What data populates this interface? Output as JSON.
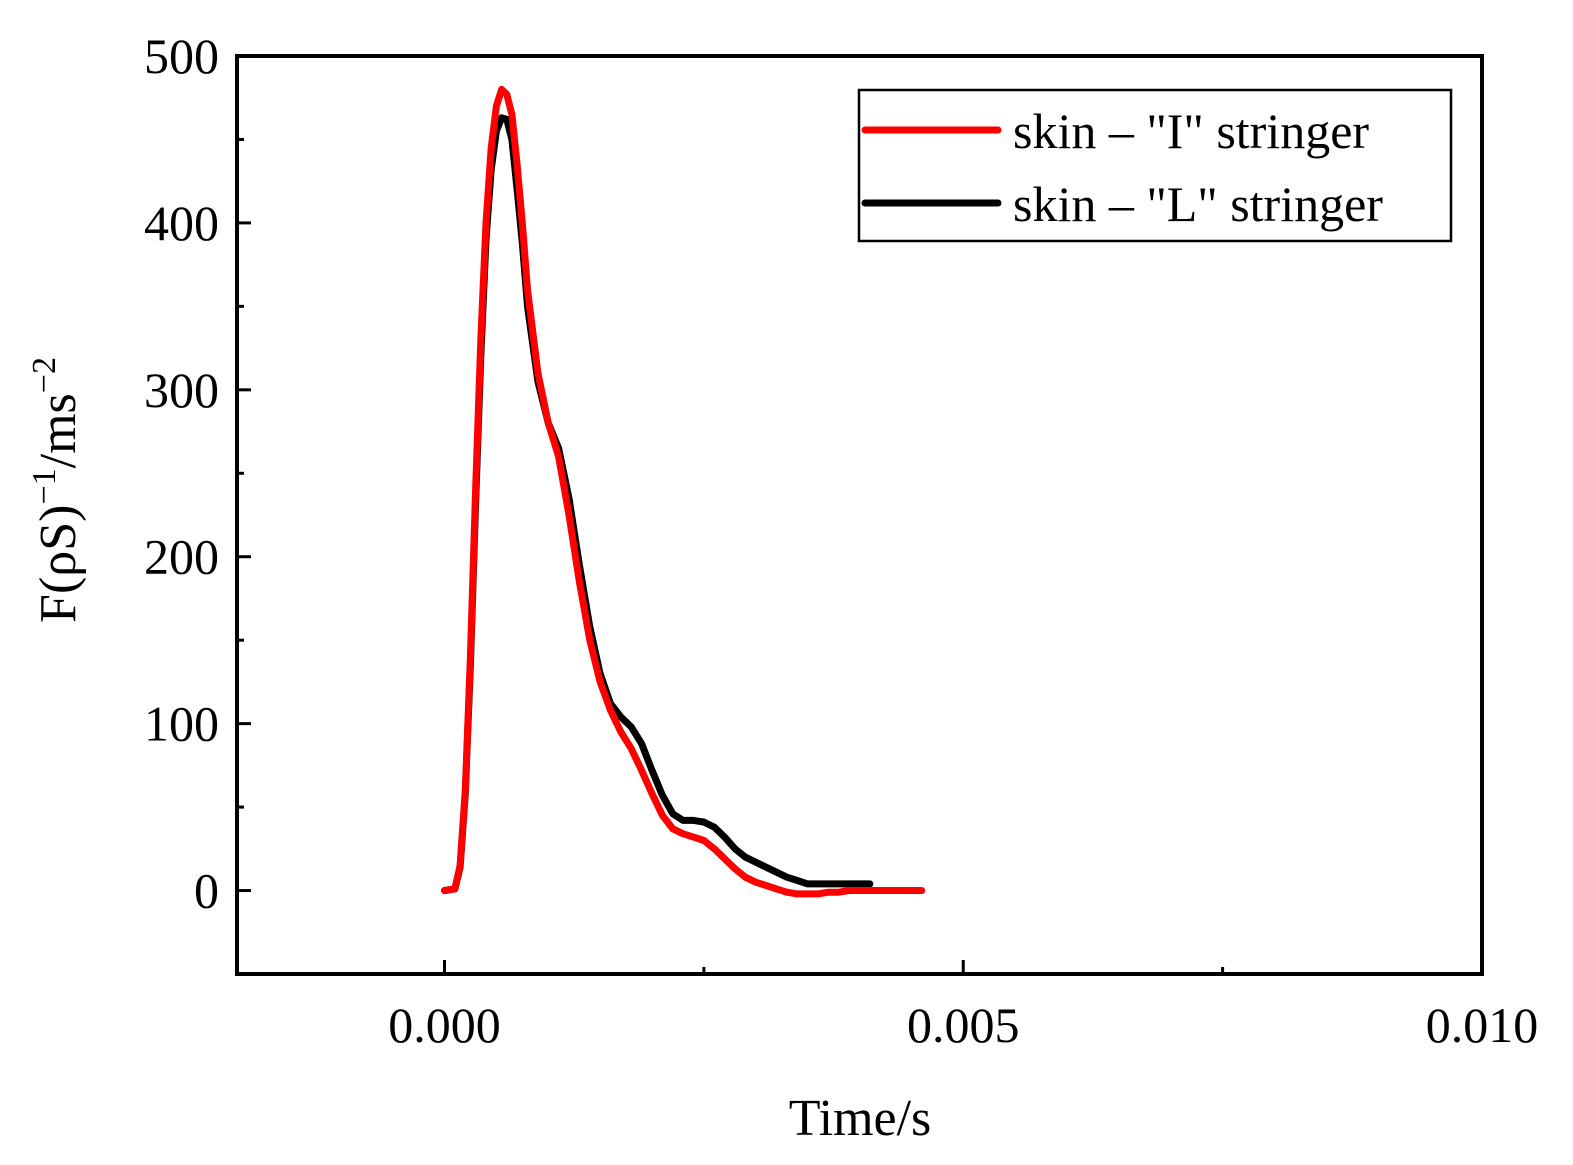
{
  "chart_data": {
    "type": "line",
    "title": "",
    "xlabel": "Time/s",
    "ylabel": "F(ρS)",
    "ylabel_sup1": "−1",
    "ylabel_mid": "/ms",
    "ylabel_sup2": "−2",
    "xlim": [
      -0.002,
      0.01
    ],
    "ylim": [
      -50,
      500
    ],
    "x_ticks": [
      0.0,
      0.005,
      0.01
    ],
    "x_tick_labels": [
      "0.000",
      "0.005",
      "0.010"
    ],
    "x_minor_ticks": [
      0.0025,
      0.0075
    ],
    "y_ticks": [
      0,
      100,
      200,
      300,
      400,
      500
    ],
    "y_tick_labels": [
      "0",
      "100",
      "200",
      "300",
      "400",
      "500"
    ],
    "y_minor_ticks": [
      50,
      150,
      250,
      350,
      450
    ],
    "grid": false,
    "legend_position": "top-right",
    "series": [
      {
        "name": "skin – \"I\" stringer",
        "color": "#ff0000",
        "x": [
          0.0,
          0.0001,
          0.00015,
          0.0002,
          0.00025,
          0.0003,
          0.00035,
          0.0004,
          0.00045,
          0.0005,
          0.00055,
          0.0006,
          0.00065,
          0.0007,
          0.00075,
          0.0008,
          0.0009,
          0.001,
          0.0011,
          0.0012,
          0.0013,
          0.0014,
          0.0015,
          0.0016,
          0.0017,
          0.0018,
          0.0019,
          0.002,
          0.0021,
          0.0022,
          0.0023,
          0.0024,
          0.0025,
          0.0026,
          0.0027,
          0.0028,
          0.0029,
          0.003,
          0.0031,
          0.0032,
          0.0033,
          0.0034,
          0.0035,
          0.0036,
          0.0037,
          0.0038,
          0.0039,
          0.004,
          0.0041,
          0.0042,
          0.0043,
          0.0044,
          0.0045,
          0.0046
        ],
        "y": [
          0,
          1,
          15,
          60,
          140,
          240,
          330,
          400,
          445,
          470,
          480,
          477,
          465,
          435,
          400,
          360,
          310,
          280,
          260,
          225,
          185,
          150,
          125,
          108,
          95,
          85,
          72,
          58,
          45,
          37,
          34,
          32,
          30,
          25,
          19,
          13,
          8,
          5,
          3,
          1,
          -1,
          -2,
          -2,
          -2,
          -1,
          -1,
          0,
          0,
          0,
          0,
          0,
          0,
          0,
          0
        ]
      },
      {
        "name": "skin – \"L\" stringer",
        "color": "#000000",
        "x": [
          0.0,
          0.0001,
          0.00015,
          0.0002,
          0.00025,
          0.0003,
          0.00035,
          0.0004,
          0.00045,
          0.0005,
          0.00055,
          0.0006,
          0.00065,
          0.0007,
          0.00075,
          0.0008,
          0.0009,
          0.001,
          0.0011,
          0.0012,
          0.0013,
          0.0014,
          0.0015,
          0.0016,
          0.0017,
          0.0018,
          0.0019,
          0.002,
          0.0021,
          0.0022,
          0.0023,
          0.0024,
          0.0025,
          0.0026,
          0.0027,
          0.0028,
          0.0029,
          0.003,
          0.0031,
          0.0032,
          0.0033,
          0.0034,
          0.0035,
          0.0036,
          0.0037,
          0.0038,
          0.0039,
          0.004,
          0.0041
        ],
        "y": [
          0,
          1,
          14,
          58,
          135,
          232,
          320,
          390,
          432,
          455,
          463,
          462,
          450,
          420,
          388,
          350,
          305,
          280,
          265,
          235,
          195,
          158,
          130,
          112,
          104,
          98,
          88,
          72,
          57,
          46,
          42,
          42,
          41,
          38,
          32,
          25,
          20,
          17,
          14,
          11,
          8,
          6,
          4,
          4,
          4,
          4,
          4,
          4,
          4
        ]
      }
    ]
  }
}
